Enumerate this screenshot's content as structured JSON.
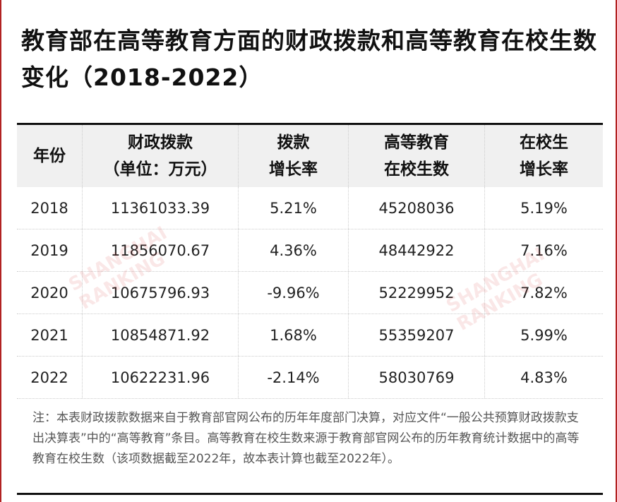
{
  "title": "教育部在高等教育方面的财政拨款和高等教育在校生数变化（2018-2022）",
  "headers": [
    [
      "年份",
      ""
    ],
    [
      "财政拨款",
      "（单位：万元）"
    ],
    [
      "拨款",
      "增长率"
    ],
    [
      "高等教育",
      "在校生数"
    ],
    [
      "在校生",
      "增长率"
    ]
  ],
  "rows": [
    [
      "2018",
      "11361033.39",
      "5.21%",
      "45208036",
      "5.19%"
    ],
    [
      "2019",
      "11856070.67",
      "4.36%",
      "48442922",
      "7.16%"
    ],
    [
      "2020",
      "10675796.93",
      "-9.96%",
      "52229952",
      "7.82%"
    ],
    [
      "2021",
      "10854871.92",
      "1.68%",
      "55359207",
      "5.99%"
    ],
    [
      "2022",
      "10622231.96",
      "-2.14%",
      "58030769",
      "4.83%"
    ]
  ],
  "note": "注：本表财政拨款数据来自于教育部官网公布的历年年度部门决算，对应文件“一般公共预算财政拨款支出决算表”中的“高等教育”条目。高等教育在校生数来源于教育部官网公布的历年教育统计数据中的高等教育在校生数（该项数据截至2022年，故本表计算也截至2022年）。",
  "watermark": "SHANGHAI RANKING",
  "colors": {
    "border": "#b22222",
    "header_bg": "#f0f0f0"
  }
}
